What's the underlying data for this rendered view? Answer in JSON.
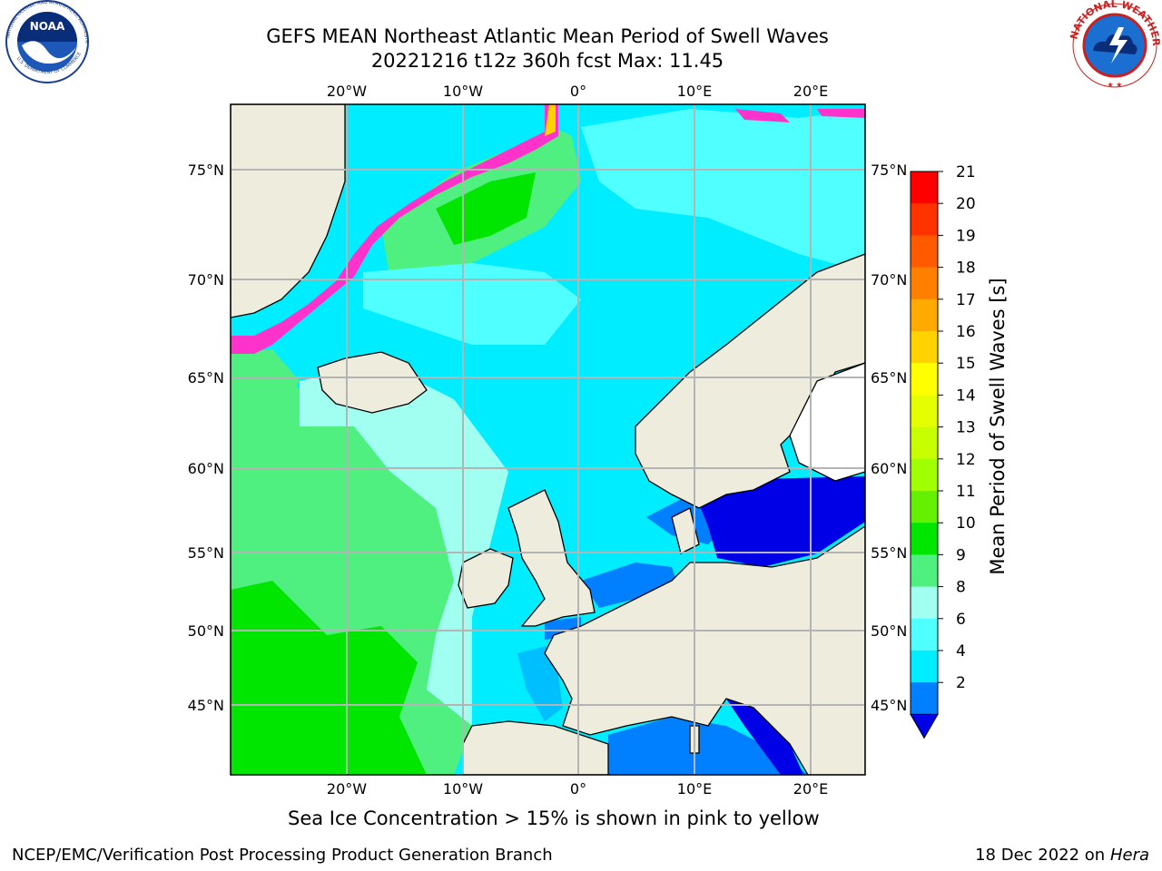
{
  "header": {
    "title_line1": "GEFS MEAN Northeast Atlantic Mean Period of Swell Waves",
    "title_line2": "20221216 t12z 360h fcst   Max: 11.45"
  },
  "logos": {
    "left": "noaa-logo",
    "right": "nws-logo"
  },
  "map": {
    "lon_labels": [
      "20°W",
      "10°W",
      "0°",
      "10°E",
      "20°E"
    ],
    "lat_labels": [
      "75°N",
      "70°N",
      "65°N",
      "60°N",
      "55°N",
      "50°N",
      "45°N"
    ],
    "colors": {
      "land": "#eeecdc",
      "ice_white": "#ffffff",
      "grid": "#b4b4b4",
      "coast": "#000000"
    }
  },
  "colorbar": {
    "label": "Mean Period of Swell Waves [s]",
    "ticks": [
      "21",
      "20",
      "19",
      "18",
      "17",
      "16",
      "15",
      "14",
      "13",
      "12",
      "11",
      "10",
      "9",
      "8",
      "6",
      "4",
      "2"
    ],
    "bands": [
      "#ff0000",
      "#ff3300",
      "#ff5a00",
      "#ff8000",
      "#ffaa00",
      "#ffd200",
      "#ffff00",
      "#e6ff00",
      "#c8ff00",
      "#a0ff00",
      "#64f000",
      "#00e600",
      "#50f080",
      "#a0fff0",
      "#50ffff",
      "#00ecff",
      "#0080ff"
    ],
    "under_color": "#0000e6"
  },
  "captions": {
    "ice_note": "Sea Ice Concentration > 15% is shown in pink to yellow",
    "footer_left": "NCEP/EMC/Verification Post Processing Product Generation Branch",
    "footer_right_date": "18 Dec 2022 on",
    "footer_right_host": "Hera"
  }
}
